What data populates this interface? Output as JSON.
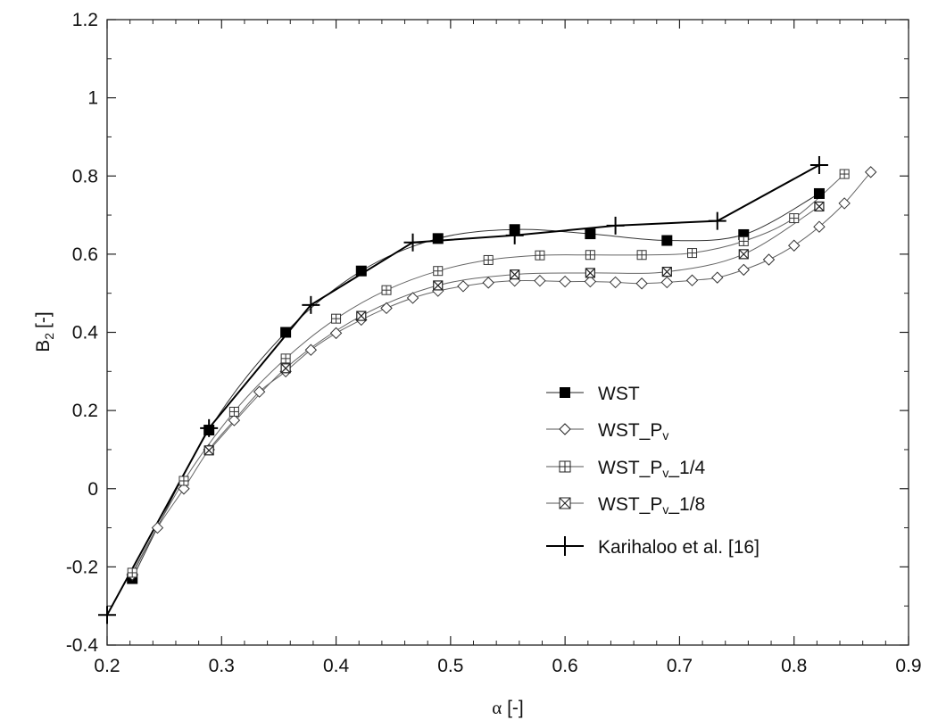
{
  "chart_data": {
    "type": "line",
    "title": "",
    "xlabel": {
      "symbol": "α",
      "unit": "[-]"
    },
    "ylabel": {
      "main": "B",
      "sub": "2",
      "unit": "[-]"
    },
    "xlim": [
      0.2,
      0.9
    ],
    "ylim": [
      -0.4,
      1.2
    ],
    "xticks": [
      "0.2",
      "0.3",
      "0.4",
      "0.5",
      "0.6",
      "0.7",
      "0.8",
      "0.9"
    ],
    "yticks": [
      "-0.4",
      "-0.2",
      "0",
      "0.2",
      "0.4",
      "0.6",
      "0.8",
      "1",
      "1.2"
    ],
    "grid": false,
    "legend_placement": "center-right",
    "series": [
      {
        "name": "WST",
        "marker": "filled-square",
        "line": "smooth-thin",
        "x": [
          0.222,
          0.289,
          0.356,
          0.422,
          0.489,
          0.556,
          0.622,
          0.689,
          0.756,
          0.822
        ],
        "y": [
          -0.23,
          0.15,
          0.4,
          0.557,
          0.64,
          0.663,
          0.652,
          0.635,
          0.65,
          0.755
        ]
      },
      {
        "name": "WST_Pv",
        "legend": {
          "base": "WST_P",
          "sub": "v",
          "suffix": ""
        },
        "marker": "open-diamond",
        "line": "smooth-thin",
        "x": [
          0.222,
          0.244,
          0.267,
          0.289,
          0.311,
          0.333,
          0.356,
          0.378,
          0.4,
          0.422,
          0.444,
          0.467,
          0.489,
          0.511,
          0.533,
          0.556,
          0.578,
          0.6,
          0.622,
          0.644,
          0.667,
          0.689,
          0.711,
          0.733,
          0.756,
          0.778,
          0.8,
          0.822,
          0.844,
          0.867
        ],
        "y": [
          -0.22,
          -0.1,
          0.0,
          0.1,
          0.175,
          0.248,
          0.3,
          0.355,
          0.398,
          0.432,
          0.462,
          0.488,
          0.506,
          0.518,
          0.527,
          0.532,
          0.532,
          0.53,
          0.53,
          0.528,
          0.525,
          0.528,
          0.533,
          0.54,
          0.56,
          0.586,
          0.622,
          0.67,
          0.73,
          0.81
        ]
      },
      {
        "name": "WST_Pv_1/4",
        "legend": {
          "base": "WST_P",
          "sub": "v",
          "suffix": "_1/4"
        },
        "marker": "square-plus",
        "line": "smooth-thin",
        "x": [
          0.222,
          0.267,
          0.311,
          0.356,
          0.4,
          0.444,
          0.489,
          0.533,
          0.578,
          0.622,
          0.667,
          0.711,
          0.756,
          0.8,
          0.844
        ],
        "y": [
          -0.215,
          0.02,
          0.197,
          0.333,
          0.435,
          0.508,
          0.557,
          0.585,
          0.597,
          0.598,
          0.598,
          0.603,
          0.633,
          0.692,
          0.805
        ]
      },
      {
        "name": "WST_Pv_1/8",
        "legend": {
          "base": "WST_P",
          "sub": "v",
          "suffix": "_1/8"
        },
        "marker": "square-x",
        "line": "smooth-thin",
        "x": [
          0.289,
          0.356,
          0.422,
          0.489,
          0.556,
          0.622,
          0.689,
          0.756,
          0.822
        ],
        "y": [
          0.098,
          0.308,
          0.442,
          0.52,
          0.548,
          0.552,
          0.555,
          0.6,
          0.722
        ]
      },
      {
        "name": "Karihaloo et al. [16]",
        "marker": "plus",
        "line": "straight-thick",
        "x": [
          0.2,
          0.289,
          0.378,
          0.467,
          0.556,
          0.644,
          0.733,
          0.822
        ],
        "y": [
          -0.323,
          0.155,
          0.47,
          0.63,
          0.648,
          0.673,
          0.685,
          0.828
        ]
      }
    ]
  }
}
